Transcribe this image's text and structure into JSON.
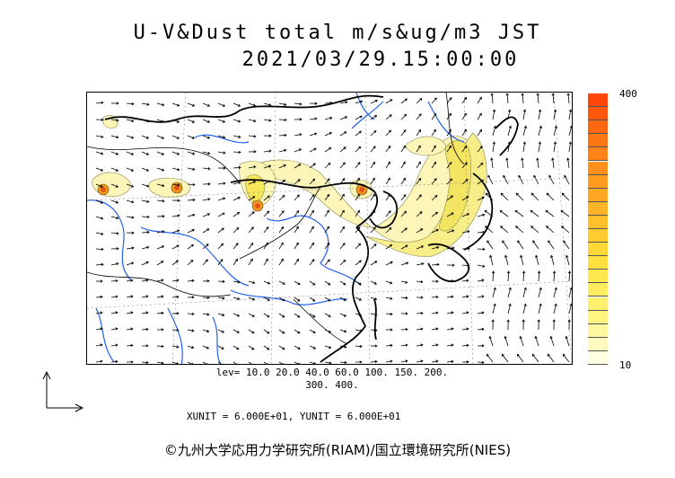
{
  "title": {
    "line1": "U-V&Dust total m/s&ug/m3 JST",
    "line2": "2021/03/29.15:00:00"
  },
  "colorbar": {
    "max_label": "400",
    "min_label": "10",
    "colors": [
      "#fffde0",
      "#fffac0",
      "#fff7a0",
      "#fff480",
      "#fff070",
      "#ffec60",
      "#ffe850",
      "#ffe040",
      "#ffd838",
      "#ffcc30",
      "#ffc02c",
      "#ffb428",
      "#ffa824",
      "#ff9c20",
      "#ff901c",
      "#ff8418",
      "#ff7614",
      "#ff6810",
      "#ff580c",
      "#ff4808"
    ]
  },
  "levels": {
    "line1": "lev= 10.0 20.0 40.0 60.0 100. 150. 200.",
    "line2": "300. 400."
  },
  "units": "XUNIT = 6.000E+01, YUNIT = 6.000E+01",
  "copyright": "©九州大学応用力学研究所(RIAM)/国立環境研究所(NIES)",
  "colors": {
    "dust_light": "#fdf6b8",
    "dust_mid": "#f7e75a",
    "dust_high": "#f29a1c",
    "dust_core": "#e2541a",
    "river": "#2060f0",
    "coast": "#000000"
  }
}
